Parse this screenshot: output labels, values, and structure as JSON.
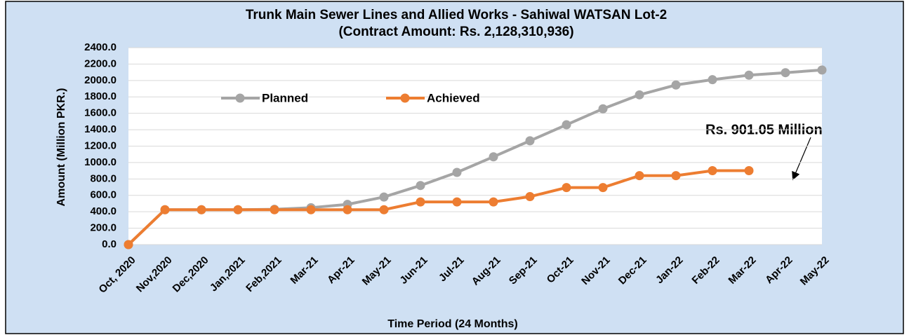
{
  "chart_data": {
    "type": "line",
    "title": "Trunk Main Sewer Lines and Allied Works - Sahiwal WATSAN Lot-2",
    "subtitle": "(Contract Amount: Rs. 2,128,310,936)",
    "x_label": "Time Period (24 Months)",
    "y_label": "Amount (Million PKR.)",
    "annotation": "Rs. 901.05 Million",
    "categories": [
      "Oct, 2020",
      "Nov,2020",
      "Dec,2020",
      "Jan,2021",
      "Feb,2021",
      "Mar-21",
      "Apr-21",
      "May-21",
      "Jun-21",
      "Jul-21",
      "Aug-21",
      "Sep-21",
      "Oct-21",
      "Nov-21",
      "Dec-21",
      "Jan-22",
      "Feb-22",
      "Mar-22",
      "Apr-22",
      "May-22"
    ],
    "series": [
      {
        "name": "Planned",
        "color": "#a5a5a5",
        "values": [
          0,
          425,
          425,
          425,
          430,
          450,
          490,
          580,
          720,
          880,
          1070,
          1265,
          1460,
          1655,
          1825,
          1945,
          2010,
          2065,
          2095,
          2128
        ]
      },
      {
        "name": "Achieved",
        "color": "#ed7d31",
        "values": [
          0,
          425,
          425,
          425,
          425,
          425,
          425,
          425,
          520,
          520,
          520,
          585,
          695,
          695,
          840,
          840,
          901.05,
          901.05,
          null,
          null
        ]
      }
    ],
    "ylim": [
      0,
      2400
    ],
    "yticks": [
      {
        "value": 0,
        "label": "0.0"
      },
      {
        "value": 200,
        "label": "200.0"
      },
      {
        "value": 400,
        "label": "400.0"
      },
      {
        "value": 600,
        "label": "600.0"
      },
      {
        "value": 800,
        "label": "800.0"
      },
      {
        "value": 1000,
        "label": "1000.0"
      },
      {
        "value": 1200,
        "label": "1200.0"
      },
      {
        "value": 1400,
        "label": "1400.0"
      },
      {
        "value": 1600,
        "label": "1600.0"
      },
      {
        "value": 1800,
        "label": "1800.0"
      },
      {
        "value": 2000,
        "label": "2000.0"
      },
      {
        "value": 2200,
        "label": "2200.0"
      },
      {
        "value": 2400,
        "label": "2400.0"
      }
    ],
    "grid": true
  }
}
